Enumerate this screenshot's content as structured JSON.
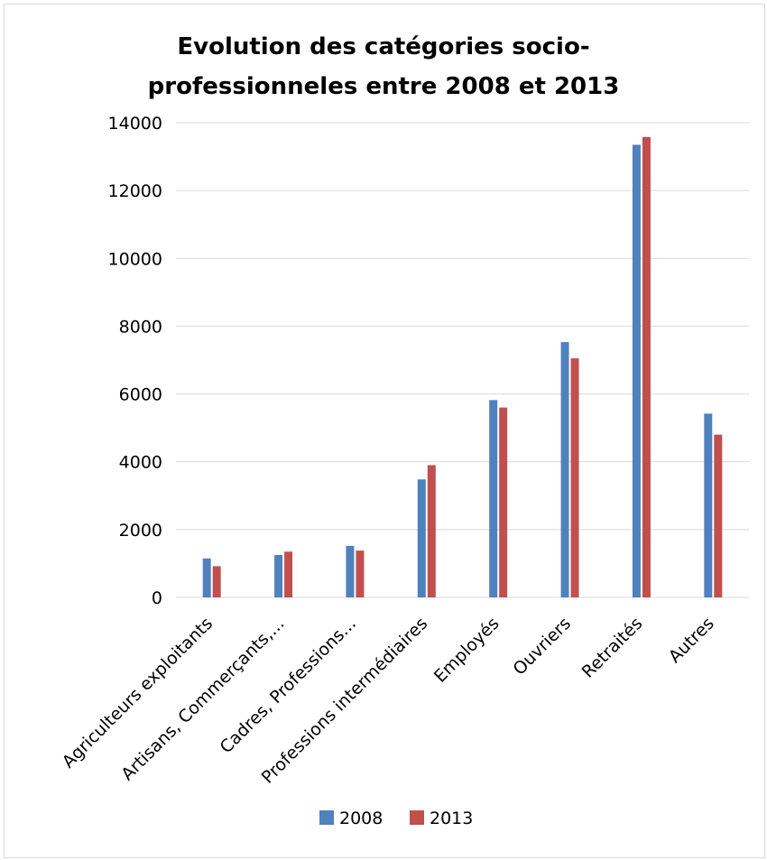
{
  "chart_data": {
    "type": "bar",
    "title_line1": "Evolution des catégories socio-",
    "title_line2": "professionneles entre 2008 et 2013",
    "categories": [
      "Agriculteurs exploitants",
      "Artisans, Commerçants,...",
      "Cadres, Professions...",
      "Professions intermédiaires",
      "Employés",
      "Ouvriers",
      "Retraités",
      "Autres"
    ],
    "series": [
      {
        "name": "2008",
        "color": "#4f81bd",
        "values": [
          1150,
          1250,
          1520,
          3480,
          5820,
          7530,
          13350,
          5420
        ]
      },
      {
        "name": "2013",
        "color": "#c0504d",
        "values": [
          920,
          1350,
          1380,
          3900,
          5600,
          7050,
          13580,
          4800
        ]
      }
    ],
    "yticks": [
      "0",
      "2000",
      "4000",
      "6000",
      "8000",
      "10000",
      "12000",
      "14000"
    ],
    "ylim": [
      0,
      14000
    ],
    "grid": true,
    "legend": "bottom"
  }
}
